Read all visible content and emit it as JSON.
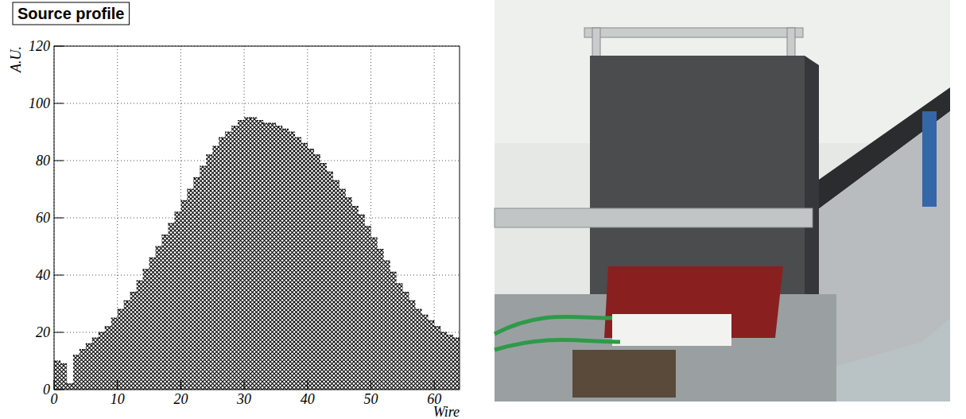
{
  "chart_data": {
    "type": "histogram",
    "title": "Source profile",
    "x_label": "Wire",
    "y_label": "A.U.",
    "bins": [
      0,
      1,
      2,
      3,
      4,
      5,
      6,
      7,
      8,
      9,
      10,
      11,
      12,
      13,
      14,
      15,
      16,
      17,
      18,
      19,
      20,
      21,
      22,
      23,
      24,
      25,
      26,
      27,
      28,
      29,
      30,
      31,
      32,
      33,
      34,
      35,
      36,
      37,
      38,
      39,
      40,
      41,
      42,
      43,
      44,
      45,
      46,
      47,
      48,
      49,
      50,
      51,
      52,
      53,
      54,
      55,
      56,
      57,
      58,
      59,
      60,
      61,
      62,
      63,
      64
    ],
    "values": [
      10,
      9,
      2,
      12,
      14,
      16,
      18,
      20,
      22,
      25,
      28,
      31,
      34,
      38,
      42,
      46,
      50,
      54,
      58,
      62,
      66,
      70,
      74,
      78,
      82,
      85,
      88,
      90,
      92,
      94,
      95,
      95,
      94,
      93,
      93,
      92,
      91,
      90,
      88,
      86,
      84,
      82,
      79,
      76,
      73,
      70,
      67,
      64,
      61,
      57,
      53,
      49,
      45,
      41,
      37,
      34,
      31,
      28,
      26,
      24,
      22,
      20,
      19,
      18
    ],
    "color": "#000000",
    "xlim": [
      0,
      64
    ],
    "xticks": [
      0,
      10,
      20,
      30,
      40,
      50,
      60
    ],
    "ylim": [
      0,
      120
    ],
    "yticks": [
      0,
      20,
      40,
      60,
      80,
      100,
      120
    ],
    "grid": true
  }
}
